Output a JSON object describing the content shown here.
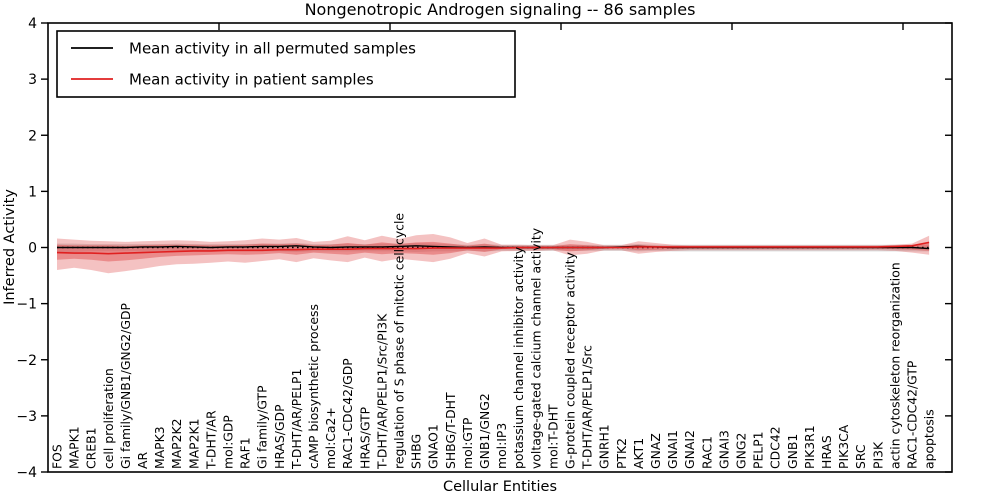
{
  "title": "Nongenotropic Androgen signaling -- 86 samples",
  "axes": {
    "xlabel": "Cellular Entities",
    "ylabel": "Inferred Activity",
    "yticks": [
      "4",
      "3",
      "2",
      "1",
      "0",
      "−1",
      "−2",
      "−3",
      "−4"
    ],
    "ytick_values": [
      4,
      3,
      2,
      1,
      0,
      -1,
      -2,
      -3,
      -4
    ],
    "xtick_top_units": [
      10,
      20,
      30,
      40,
      50
    ],
    "ylim": [
      -4,
      4
    ]
  },
  "legend": {
    "items": [
      {
        "label": "Mean activity in all permuted samples",
        "color": "#000000"
      },
      {
        "label": "Mean activity in patient samples",
        "color": "#e02020"
      }
    ]
  },
  "colors": {
    "permuted_line": "#000000",
    "patient_line": "#e02020",
    "zero_dotted": "#000000",
    "red_band": "#e05050",
    "gray_band": "#999999",
    "spine": "#000000"
  },
  "chart_data": {
    "type": "line",
    "title": "Nongenotropic Androgen signaling -- 86 samples",
    "xlabel": "Cellular Entities",
    "ylabel": "Inferred Activity",
    "ylim": [
      -4,
      4
    ],
    "grid": false,
    "legend_position": "upper-left",
    "categories": [
      "FOS",
      "MAPK1",
      "CREB1",
      "cell proliferation",
      "Gi family/GNB1/GNG2/GDP",
      "AR",
      "MAPK3",
      "MAP2K2",
      "MAP2K1",
      "T-DHT/AR",
      "mol:GDP",
      "RAF1",
      "Gi family/GTP",
      "HRAS/GDP",
      "T-DHT/AR/PELP1",
      "cAMP biosynthetic process",
      "mol:Ca2+",
      "RAC1-CDC42/GDP",
      "HRAS/GTP",
      "T-DHT/AR/PELP1/Src/PI3K",
      "regulation of S phase of mitotic cell cycle",
      "SHBG",
      "GNAO1",
      "SHBG/T-DHT",
      "mol:GTP",
      "GNB1/GNG2",
      "mol:IP3",
      "potassium channel inhibitor activity",
      "voltage-gated calcium channel activity",
      "mol:T-DHT",
      "G-protein coupled receptor activity",
      "T-DHT/AR/PELP1/Src",
      "GNRH1",
      "PTK2",
      "AKT1",
      "GNAZ",
      "GNAI1",
      "GNAI2",
      "RAC1",
      "GNAI3",
      "GNG2",
      "PELP1",
      "CDC42",
      "GNB1",
      "PIK3R1",
      "HRAS",
      "PIK3CA",
      "SRC",
      "PI3K",
      "actin cytoskeleton reorganization",
      "RAC1-CDC42/GTP",
      "apoptosis"
    ],
    "series": [
      {
        "name": "Mean activity in all permuted samples",
        "color": "#000000",
        "values": [
          0,
          0,
          0,
          0,
          0,
          0.01,
          0.01,
          0.02,
          0.01,
          0,
          0.01,
          0.01,
          0.02,
          0.02,
          0.03,
          0.01,
          0,
          0.01,
          0.01,
          0.01,
          0.02,
          0.03,
          0.02,
          0.01,
          0,
          0.01,
          0,
          0,
          0,
          0,
          0,
          0,
          0,
          0.01,
          0.02,
          0.01,
          0,
          0,
          0,
          0,
          0,
          0,
          0,
          0,
          0,
          0,
          0,
          0,
          0,
          0,
          0,
          -0.02
        ]
      },
      {
        "name": "Mean activity in patient samples",
        "color": "#e02020",
        "values": [
          -0.09,
          -0.1,
          -0.1,
          -0.11,
          -0.1,
          -0.09,
          -0.08,
          -0.07,
          -0.06,
          -0.06,
          -0.05,
          -0.05,
          -0.05,
          -0.04,
          -0.04,
          -0.03,
          -0.03,
          -0.03,
          -0.02,
          -0.02,
          -0.02,
          -0.02,
          -0.01,
          -0.01,
          -0.01,
          -0.01,
          -0.01,
          0,
          0,
          0,
          0,
          0,
          0,
          0,
          0.01,
          0.01,
          0.01,
          0.01,
          0.01,
          0.01,
          0.01,
          0.01,
          0.01,
          0.01,
          0.01,
          0.01,
          0.01,
          0.01,
          0.01,
          0.02,
          0.03,
          0.09
        ]
      }
    ],
    "bands": {
      "gray_upper": [
        0.07,
        0.07,
        0.06,
        0.06,
        0.06,
        0.06,
        0.06,
        0.07,
        0.06,
        0.06,
        0.06,
        0.06,
        0.07,
        0.07,
        0.08,
        0.06,
        0.06,
        0.07,
        0.06,
        0.07,
        0.07,
        0.08,
        0.07,
        0.06,
        0.05,
        0.06,
        0.05,
        0.05,
        0.05,
        0.05,
        0.05,
        0.05,
        0.05,
        0.05,
        0.06,
        0.05,
        0.05,
        0.05,
        0.05,
        0.05,
        0.05,
        0.05,
        0.05,
        0.05,
        0.05,
        0.05,
        0.05,
        0.05,
        0.05,
        0.05,
        0.05,
        0.05
      ],
      "gray_lower": [
        -0.08,
        -0.08,
        -0.07,
        -0.07,
        -0.07,
        -0.07,
        -0.07,
        -0.07,
        -0.07,
        -0.07,
        -0.07,
        -0.07,
        -0.07,
        -0.07,
        -0.08,
        -0.07,
        -0.07,
        -0.07,
        -0.07,
        -0.07,
        -0.07,
        -0.08,
        -0.07,
        -0.07,
        -0.06,
        -0.07,
        -0.06,
        -0.06,
        -0.06,
        -0.06,
        -0.06,
        -0.06,
        -0.06,
        -0.06,
        -0.07,
        -0.06,
        -0.07,
        -0.07,
        -0.07,
        -0.07,
        -0.07,
        -0.07,
        -0.07,
        -0.07,
        -0.07,
        -0.07,
        -0.07,
        -0.07,
        -0.07,
        -0.07,
        -0.07,
        -0.07
      ],
      "red_outer_upper": [
        0.16,
        0.14,
        0.12,
        0.11,
        0.1,
        0.11,
        0.12,
        0.13,
        0.12,
        0.1,
        0.11,
        0.13,
        0.16,
        0.14,
        0.17,
        0.1,
        0.12,
        0.2,
        0.13,
        0.21,
        0.15,
        0.22,
        0.24,
        0.18,
        0.08,
        0.16,
        0.05,
        0.05,
        0.04,
        0.04,
        0.14,
        0.1,
        0.04,
        0.04,
        0.11,
        0.08,
        0.05,
        0.04,
        0.04,
        0.04,
        0.04,
        0.04,
        0.04,
        0.04,
        0.04,
        0.04,
        0.04,
        0.04,
        0.04,
        0.05,
        0.07,
        0.21
      ],
      "red_outer_lower": [
        -0.4,
        -0.36,
        -0.4,
        -0.46,
        -0.42,
        -0.38,
        -0.33,
        -0.3,
        -0.29,
        -0.27,
        -0.25,
        -0.27,
        -0.24,
        -0.21,
        -0.26,
        -0.19,
        -0.23,
        -0.26,
        -0.18,
        -0.25,
        -0.2,
        -0.23,
        -0.26,
        -0.2,
        -0.1,
        -0.16,
        -0.07,
        -0.06,
        -0.06,
        -0.05,
        -0.14,
        -0.11,
        -0.05,
        -0.05,
        -0.11,
        -0.08,
        -0.06,
        -0.05,
        -0.05,
        -0.05,
        -0.05,
        -0.05,
        -0.05,
        -0.05,
        -0.05,
        -0.05,
        -0.05,
        -0.05,
        -0.05,
        -0.06,
        -0.09,
        -0.13
      ],
      "red_inner_upper": [
        0.05,
        0.04,
        0.04,
        0.04,
        0.03,
        0.04,
        0.05,
        0.05,
        0.05,
        0.04,
        0.04,
        0.05,
        0.07,
        0.06,
        0.07,
        0.04,
        0.05,
        0.08,
        0.05,
        0.09,
        0.06,
        0.09,
        0.1,
        0.07,
        0.03,
        0.07,
        0.02,
        0.02,
        0.02,
        0.02,
        0.06,
        0.04,
        0.02,
        0.02,
        0.05,
        0.03,
        0.02,
        0.02,
        0.02,
        0.02,
        0.02,
        0.02,
        0.02,
        0.02,
        0.02,
        0.02,
        0.02,
        0.02,
        0.02,
        0.02,
        0.03,
        0.09
      ],
      "red_inner_lower": [
        -0.22,
        -0.2,
        -0.22,
        -0.25,
        -0.23,
        -0.2,
        -0.17,
        -0.15,
        -0.14,
        -0.13,
        -0.12,
        -0.13,
        -0.12,
        -0.1,
        -0.13,
        -0.09,
        -0.11,
        -0.13,
        -0.09,
        -0.12,
        -0.1,
        -0.11,
        -0.13,
        -0.1,
        -0.05,
        -0.08,
        -0.03,
        -0.03,
        -0.03,
        -0.03,
        -0.07,
        -0.05,
        -0.02,
        -0.02,
        -0.05,
        -0.04,
        -0.03,
        -0.02,
        -0.02,
        -0.02,
        -0.02,
        -0.02,
        -0.02,
        -0.02,
        -0.02,
        -0.02,
        -0.02,
        -0.02,
        -0.02,
        -0.03,
        -0.04,
        -0.06
      ]
    },
    "zero_reference_line": 0
  }
}
